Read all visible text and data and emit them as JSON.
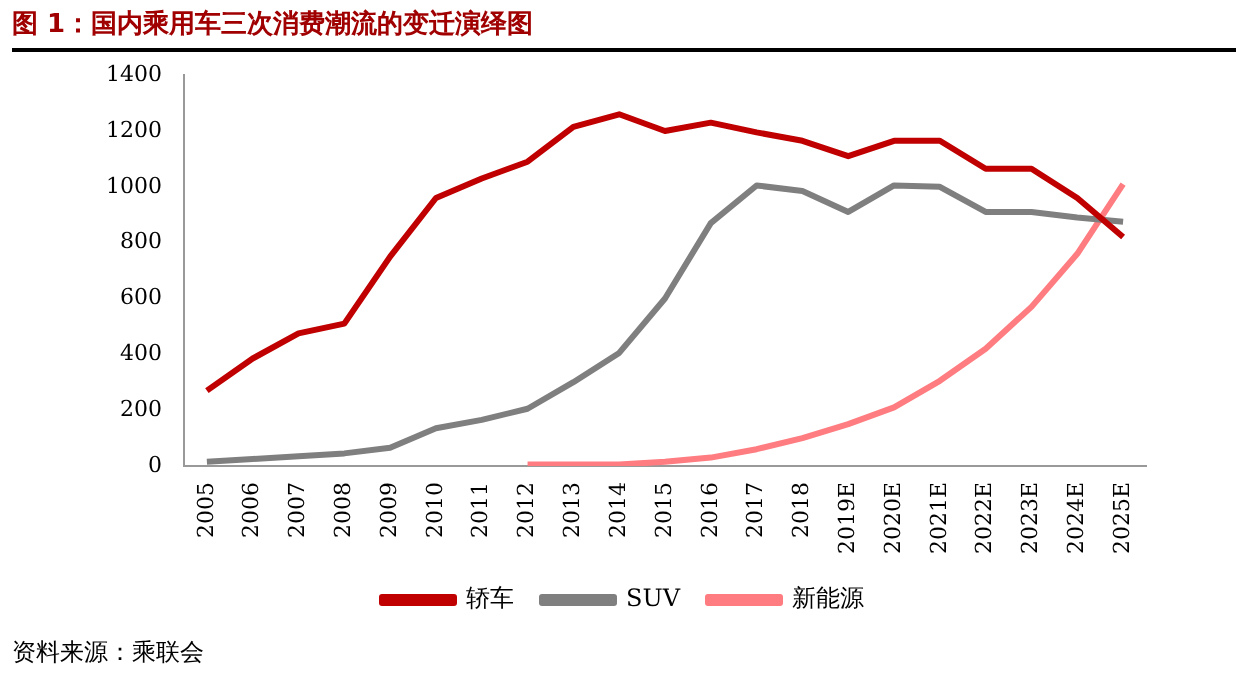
{
  "chart_data": {
    "type": "line",
    "title": "图 1：国内乘用车三次消费潮流的变迁演绎图",
    "categories": [
      "2005",
      "2006",
      "2007",
      "2008",
      "2009",
      "2010",
      "2011",
      "2012",
      "2013",
      "2014",
      "2015",
      "2016",
      "2017",
      "2018",
      "2019E",
      "2020E",
      "2021E",
      "2022E",
      "2023E",
      "2024E",
      "2025E"
    ],
    "series": [
      {
        "name": "轿车",
        "color": "#c00000",
        "values": [
          270,
          385,
          475,
          510,
          750,
          960,
          1030,
          1090,
          1215,
          1260,
          1200,
          1230,
          1195,
          1165,
          1110,
          1165,
          1165,
          1065,
          1065,
          960,
          820
        ]
      },
      {
        "name": "SUV",
        "color": "#7f7f7f",
        "values": [
          15,
          25,
          35,
          45,
          65,
          135,
          165,
          205,
          300,
          405,
          600,
          870,
          1005,
          985,
          910,
          1005,
          1000,
          910,
          910,
          890,
          875
        ]
      },
      {
        "name": "新能源",
        "color": "#ff7c80",
        "values": [
          null,
          null,
          null,
          null,
          null,
          null,
          null,
          5,
          5,
          5,
          15,
          30,
          60,
          100,
          150,
          210,
          305,
          420,
          570,
          760,
          1010
        ]
      }
    ],
    "ylim": [
      0,
      1400
    ],
    "yticks": [
      0,
      200,
      400,
      600,
      800,
      1000,
      1200,
      1400
    ],
    "grid": false,
    "legend": "bottom",
    "marker": "none",
    "line_style": "solid",
    "annotations": [
      "资料来源：乘联会"
    ]
  }
}
